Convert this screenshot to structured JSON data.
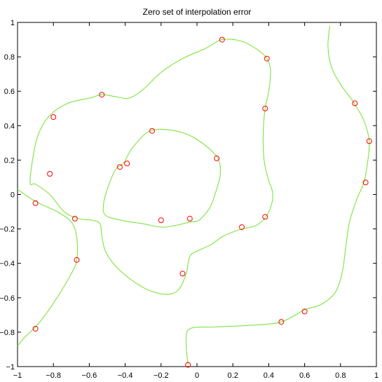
{
  "chart_data": {
    "type": "line",
    "title": "Zero set of interpolation error",
    "xlabel": "",
    "ylabel": "",
    "xlim": [
      -1,
      1
    ],
    "ylim": [
      -1,
      1
    ],
    "grid": false,
    "x_ticks": [
      -1,
      -0.8,
      -0.6,
      -0.4,
      -0.2,
      0,
      0.2,
      0.4,
      0.6,
      0.8,
      1
    ],
    "x_tick_labels": [
      "−1",
      "−0.8",
      "−0.6",
      "−0.4",
      "−0.2",
      "0",
      "0.2",
      "0.4",
      "0.6",
      "0.8",
      "1"
    ],
    "y_ticks": [
      1,
      0.8,
      0.6,
      0.4,
      0.2,
      0,
      -0.2,
      -0.4,
      -0.6,
      -0.8,
      -1
    ],
    "y_tick_labels": [
      "1",
      "0.8",
      "0.6",
      "0.4",
      "0.2",
      "0",
      "−0.2",
      "−0.4",
      "−0.6",
      "−0.8",
      "−1"
    ],
    "curve_color": "#7fe33f",
    "marker_color": "#ff0000",
    "curves": [
      {
        "closed": true,
        "points": [
          [
            -0.93,
            0.07
          ],
          [
            -0.91,
            0.24
          ],
          [
            -0.88,
            0.36
          ],
          [
            -0.82,
            0.46
          ],
          [
            -0.72,
            0.53
          ],
          [
            -0.6,
            0.56
          ],
          [
            -0.53,
            0.58
          ],
          [
            -0.46,
            0.57
          ],
          [
            -0.38,
            0.56
          ],
          [
            -0.3,
            0.61
          ],
          [
            -0.2,
            0.71
          ],
          [
            -0.08,
            0.79
          ],
          [
            0.05,
            0.85
          ],
          [
            0.14,
            0.9
          ],
          [
            0.25,
            0.89
          ],
          [
            0.34,
            0.84
          ],
          [
            0.39,
            0.79
          ],
          [
            0.41,
            0.72
          ],
          [
            0.4,
            0.6
          ],
          [
            0.38,
            0.5
          ],
          [
            0.37,
            0.38
          ],
          [
            0.37,
            0.25
          ],
          [
            0.38,
            0.16
          ],
          [
            0.4,
            0.08
          ],
          [
            0.42,
            0.02
          ],
          [
            0.42,
            -0.04
          ],
          [
            0.39,
            -0.12
          ],
          [
            0.33,
            -0.18
          ],
          [
            0.25,
            -0.2
          ],
          [
            0.15,
            -0.24
          ],
          [
            0.08,
            -0.29
          ],
          [
            0.0,
            -0.33
          ],
          [
            -0.04,
            -0.36
          ],
          [
            -0.06,
            -0.46
          ],
          [
            -0.1,
            -0.55
          ],
          [
            -0.16,
            -0.58
          ],
          [
            -0.26,
            -0.56
          ],
          [
            -0.36,
            -0.5
          ],
          [
            -0.45,
            -0.42
          ],
          [
            -0.51,
            -0.33
          ],
          [
            -0.53,
            -0.24
          ],
          [
            -0.54,
            -0.17
          ],
          [
            -0.58,
            -0.15
          ],
          [
            -0.66,
            -0.14
          ],
          [
            -0.74,
            -0.1
          ],
          [
            -0.82,
            0.0
          ],
          [
            -0.9,
            0.06
          ]
        ]
      },
      {
        "closed": true,
        "points": [
          [
            -0.26,
            0.37
          ],
          [
            -0.12,
            0.37
          ],
          [
            0.0,
            0.32
          ],
          [
            0.11,
            0.22
          ],
          [
            0.13,
            0.12
          ],
          [
            0.1,
            0.0
          ],
          [
            0.07,
            -0.08
          ],
          [
            0.01,
            -0.15
          ],
          [
            -0.04,
            -0.16
          ],
          [
            -0.12,
            -0.18
          ],
          [
            -0.2,
            -0.19
          ],
          [
            -0.3,
            -0.17
          ],
          [
            -0.42,
            -0.15
          ],
          [
            -0.51,
            -0.12
          ],
          [
            -0.52,
            -0.05
          ],
          [
            -0.49,
            0.06
          ],
          [
            -0.45,
            0.15
          ],
          [
            -0.41,
            0.18
          ],
          [
            -0.36,
            0.27
          ]
        ]
      },
      {
        "closed": false,
        "points": [
          [
            -1.0,
            0.03
          ],
          [
            -0.9,
            -0.04
          ],
          [
            -0.78,
            -0.1
          ],
          [
            -0.7,
            -0.16
          ],
          [
            -0.67,
            -0.25
          ],
          [
            -0.67,
            -0.38
          ],
          [
            -0.7,
            -0.46
          ],
          [
            -0.78,
            -0.6
          ],
          [
            -0.86,
            -0.72
          ],
          [
            -0.91,
            -0.78
          ],
          [
            -0.96,
            -0.83
          ],
          [
            -1.0,
            -0.88
          ]
        ]
      },
      {
        "closed": false,
        "points": [
          [
            0.74,
            0.98
          ],
          [
            0.73,
            0.86
          ],
          [
            0.75,
            0.74
          ],
          [
            0.8,
            0.64
          ],
          [
            0.87,
            0.54
          ],
          [
            0.93,
            0.43
          ],
          [
            0.96,
            0.31
          ],
          [
            0.95,
            0.18
          ],
          [
            0.93,
            0.07
          ],
          [
            0.89,
            -0.03
          ],
          [
            0.85,
            -0.16
          ],
          [
            0.83,
            -0.3
          ],
          [
            0.81,
            -0.45
          ],
          [
            0.77,
            -0.57
          ],
          [
            0.69,
            -0.64
          ],
          [
            0.6,
            -0.67
          ],
          [
            0.47,
            -0.74
          ],
          [
            0.3,
            -0.76
          ],
          [
            0.1,
            -0.77
          ],
          [
            -0.04,
            -0.78
          ],
          [
            -0.06,
            -0.86
          ],
          [
            -0.05,
            -0.99
          ]
        ]
      }
    ],
    "markers": [
      [
        -0.53,
        0.58
      ],
      [
        -0.8,
        0.45
      ],
      [
        -0.82,
        0.12
      ],
      [
        -0.9,
        -0.05
      ],
      [
        -0.68,
        -0.14
      ],
      [
        -0.67,
        -0.38
      ],
      [
        -0.9,
        -0.78
      ],
      [
        0.14,
        0.9
      ],
      [
        0.39,
        0.79
      ],
      [
        0.38,
        0.5
      ],
      [
        0.88,
        0.53
      ],
      [
        0.96,
        0.31
      ],
      [
        0.94,
        0.07
      ],
      [
        -0.25,
        0.37
      ],
      [
        -0.39,
        0.18
      ],
      [
        -0.43,
        0.16
      ],
      [
        0.11,
        0.21
      ],
      [
        -0.2,
        -0.15
      ],
      [
        -0.04,
        -0.14
      ],
      [
        0.25,
        -0.19
      ],
      [
        0.38,
        -0.13
      ],
      [
        -0.08,
        -0.46
      ],
      [
        0.6,
        -0.68
      ],
      [
        0.47,
        -0.74
      ],
      [
        -0.05,
        -0.99
      ]
    ]
  }
}
